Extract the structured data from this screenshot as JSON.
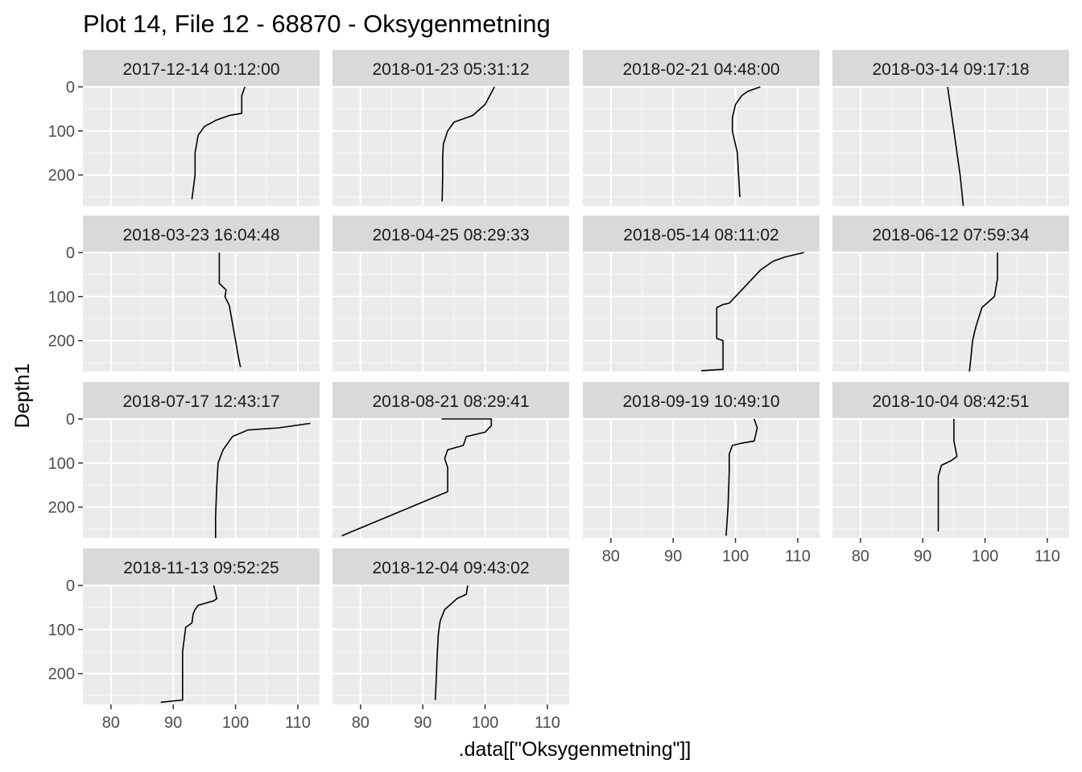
{
  "chart_data": {
    "type": "line",
    "title": "Plot 14, File 12 - 68870  -  Oksygenmetning",
    "xlabel": ".data[[\"Oksygenmetning\"]]",
    "ylabel": "Depth1",
    "xlim": [
      75.5,
      113.5
    ],
    "ylim": [
      0,
      270
    ],
    "y_reversed": true,
    "x_ticks": [
      80,
      90,
      100,
      110
    ],
    "y_ticks": [
      0,
      100,
      200
    ],
    "grid": true,
    "layout": "facet_wrap 4 columns",
    "panels": [
      {
        "label": "2017-12-14 01:12:00",
        "x": [
          101.5,
          101,
          101,
          99,
          97,
          95,
          94,
          93.5,
          93.5,
          93
        ],
        "y": [
          0,
          20,
          60,
          65,
          75,
          90,
          110,
          150,
          200,
          255
        ]
      },
      {
        "label": "2018-01-23 05:31:12",
        "x": [
          101.5,
          100,
          98,
          95,
          94,
          93.3,
          93.2,
          93.2,
          93.1
        ],
        "y": [
          0,
          40,
          65,
          80,
          100,
          130,
          160,
          200,
          260
        ]
      },
      {
        "label": "2018-02-21 04:48:00",
        "x": [
          104,
          102,
          101,
          100,
          99.5,
          99.5,
          100.3,
          100.5,
          100.7
        ],
        "y": [
          0,
          10,
          20,
          40,
          70,
          100,
          150,
          200,
          250
        ]
      },
      {
        "label": "2018-03-14 09:17:18",
        "x": [
          94,
          94.5,
          95,
          95.5,
          96,
          96.3,
          96.5
        ],
        "y": [
          0,
          50,
          100,
          150,
          200,
          240,
          270
        ]
      },
      {
        "label": "2018-03-23 16:04:48",
        "x": [
          97.4,
          97.4,
          98.5,
          98.3,
          99,
          99.5,
          100,
          100.5,
          100.8
        ],
        "y": [
          0,
          70,
          85,
          100,
          120,
          160,
          200,
          240,
          260
        ]
      },
      {
        "label": "2018-04-25 08:29:33",
        "x": [],
        "y": []
      },
      {
        "label": "2018-05-14 08:11:02",
        "x": [
          111,
          108,
          106,
          104,
          102,
          100,
          99,
          98,
          97,
          97,
          98,
          98,
          94.5
        ],
        "y": [
          0,
          10,
          20,
          40,
          70,
          100,
          115,
          118,
          125,
          195,
          200,
          265,
          268
        ]
      },
      {
        "label": "2018-06-12 07:59:34",
        "x": [
          102,
          102,
          101.5,
          99.5,
          98.5,
          98,
          97.8,
          97.5
        ],
        "y": [
          0,
          60,
          100,
          125,
          170,
          200,
          230,
          270
        ]
      },
      {
        "label": "2018-07-17 12:43:17",
        "x": [
          112,
          107,
          102,
          99.5,
          98,
          97.2,
          97,
          96.8,
          96.8
        ],
        "y": [
          10,
          20,
          25,
          40,
          70,
          100,
          150,
          220,
          270
        ]
      },
      {
        "label": "2018-08-21 08:29:41",
        "x": [
          93,
          101,
          101,
          100,
          97,
          96.5,
          94,
          93.5,
          94,
          94,
          77
        ],
        "y": [
          0,
          0,
          15,
          30,
          40,
          60,
          70,
          90,
          110,
          165,
          265
        ]
      },
      {
        "label": "2018-09-19 10:49:10",
        "x": [
          103,
          103.5,
          103,
          101,
          99.5,
          99,
          99,
          98.8,
          98.5
        ],
        "y": [
          0,
          20,
          50,
          55,
          60,
          80,
          120,
          200,
          265
        ]
      },
      {
        "label": "2018-10-04 08:42:51",
        "x": [
          95,
          95,
          95.5,
          94.5,
          93,
          92.5,
          92.5,
          92.5
        ],
        "y": [
          0,
          50,
          85,
          95,
          105,
          130,
          200,
          255
        ]
      },
      {
        "label": "2018-11-13 09:52:25",
        "x": [
          96.5,
          97,
          96.5,
          94,
          93.5,
          93.2,
          93,
          92,
          91.5,
          91.5,
          88
        ],
        "y": [
          0,
          30,
          35,
          45,
          55,
          65,
          85,
          95,
          150,
          260,
          265
        ]
      },
      {
        "label": "2018-12-04 09:43:02",
        "x": [
          97.2,
          97,
          95.5,
          93.5,
          92.8,
          92.5,
          92.3,
          92.2,
          92.0
        ],
        "y": [
          0,
          20,
          30,
          55,
          80,
          110,
          160,
          200,
          260
        ]
      }
    ]
  }
}
